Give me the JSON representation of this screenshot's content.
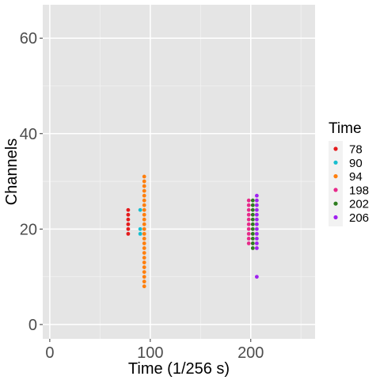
{
  "chart_data": {
    "type": "scatter",
    "xlabel": "Time (1/256 s)",
    "ylabel": "Channels",
    "xlim": [
      -7,
      264
    ],
    "ylim": [
      -3,
      67
    ],
    "x_ticks": [
      0,
      100,
      200
    ],
    "x_tick_labels": [
      "0",
      "100",
      "200"
    ],
    "y_ticks": [
      0,
      20,
      40,
      60
    ],
    "y_tick_labels": [
      "0",
      "20",
      "40",
      "60"
    ],
    "grid": true,
    "legend": {
      "title": "Time",
      "position": "right",
      "entries": [
        "78",
        "90",
        "94",
        "198",
        "202",
        "206"
      ]
    },
    "series": [
      {
        "name": "78",
        "color": "#e41a1c",
        "x": 78,
        "y": [
          19,
          20,
          21,
          22,
          23,
          24
        ]
      },
      {
        "name": "90",
        "color": "#17becf",
        "x": 90,
        "y": [
          19,
          20,
          24
        ]
      },
      {
        "name": "94",
        "color": "#ff7f0e",
        "x": 94,
        "y": [
          8,
          9,
          10,
          11,
          12,
          13,
          14,
          15,
          16,
          17,
          18,
          19,
          20,
          21,
          22,
          23,
          24,
          25,
          26,
          27,
          28,
          29,
          30,
          31
        ]
      },
      {
        "name": "198",
        "color": "#e7298a",
        "x": 198,
        "y": [
          17,
          18,
          19,
          20,
          21,
          22,
          23,
          24,
          25,
          26
        ]
      },
      {
        "name": "202",
        "color": "#2e7d1f",
        "x": 202,
        "y": [
          16,
          17,
          18,
          19,
          20,
          21,
          22,
          23,
          24,
          25,
          26
        ]
      },
      {
        "name": "206",
        "color": "#a020f0",
        "x": 206,
        "y": [
          10,
          16,
          17,
          18,
          19,
          20,
          21,
          22,
          23,
          24,
          25,
          26,
          27
        ]
      }
    ]
  }
}
